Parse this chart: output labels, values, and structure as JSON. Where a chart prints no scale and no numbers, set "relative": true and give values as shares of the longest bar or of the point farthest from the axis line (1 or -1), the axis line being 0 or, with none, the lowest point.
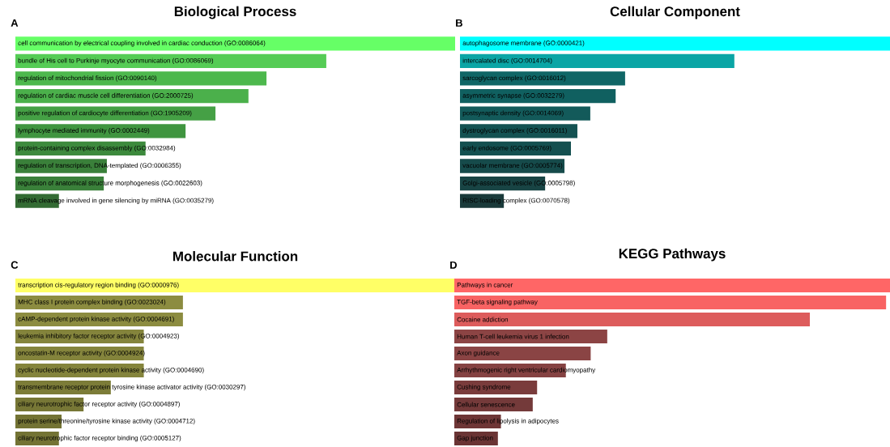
{
  "chart_data": [
    {
      "type": "bar",
      "orientation": "horizontal",
      "relative": true,
      "title": "Biological Process",
      "annotations": [
        "A"
      ],
      "categories": [
        "cell communication by electrical coupling involved in cardiac conduction (GO:0086064)",
        "bundle of His cell to Purkinje myocyte communication (GO:0086069)",
        "regulation of mitochondrial fission (GO:0090140)",
        "regulation of cardiac muscle cell differentiation (GO:2000725)",
        "positive regulation of cardiocyte differentiation (GO:1905209)",
        "lymphocyte mediated immunity (GO:0002449)",
        "protein-containing complex disassembly (GO:0032984)",
        "regulation of transcription, DNA-templated (GO:0006355)",
        "regulation of anatomical structure morphogenesis (GO:0022603)",
        "mRNA cleavage involved in gene silencing by miRNA (GO:0035279)"
      ],
      "values": [
        1,
        0.707,
        0.571,
        0.53,
        0.455,
        0.387,
        0.296,
        0.208,
        0.201,
        0.099
      ],
      "colors": [
        "#66ff66",
        "#55cc55",
        "#4db84d",
        "#4bb04b",
        "#45a045",
        "#409540",
        "#3d8a3d",
        "#3a803a",
        "#3a803a",
        "#336b33"
      ]
    },
    {
      "type": "bar",
      "orientation": "horizontal",
      "relative": true,
      "title": "Cellular Component",
      "annotations": [
        "B"
      ],
      "categories": [
        "autophagosome membrane (GO:0000421)",
        "intercalated disc (GO:0014704)",
        "sarcoglycan complex (GO:0016012)",
        "asymmetric synapse (GO:0032279)",
        "postsynaptic density (GO:0014069)",
        "dystroglycan complex (GO:0016011)",
        "early endosome (GO:0005769)",
        "vacuolar membrane (GO:0005774)",
        "Golgi-associated vesicle (GO:0005798)",
        "RISC-loading complex (GO:0070578)"
      ],
      "values": [
        1,
        0.638,
        0.384,
        0.362,
        0.303,
        0.273,
        0.258,
        0.243,
        0.198,
        0.102
      ],
      "colors": [
        "#00ffff",
        "#0aa5a5",
        "#106666",
        "#106060",
        "#135a5a",
        "#145252",
        "#145050",
        "#164b4b",
        "#184444",
        "#1a3a3a"
      ]
    },
    {
      "type": "bar",
      "orientation": "horizontal",
      "relative": true,
      "title": "Molecular Function",
      "annotations": [
        "C"
      ],
      "categories": [
        "transcription cis-regulatory region binding (GO:0000976)",
        "MHC class I protein complex binding (GO:0023024)",
        "cAMP-dependent protein kinase activity (GO:0004691)",
        "leukemia inhibitory factor receptor activity (GO:0004923)",
        "oncostatin-M receptor activity (GO:0004924)",
        "cyclic nucleotide-dependent protein kinase activity (GO:0004690)",
        "transmembrane receptor protein tyrosine kinase activator activity (GO:0030297)",
        "ciliary neurotrophic factor receptor activity (GO:0004897)",
        "protein serine/threonine/tyrosine kinase activity (GO:0004712)",
        "ciliary neurotrophic factor receptor binding (GO:0005127)"
      ],
      "values": [
        1,
        0.381,
        0.381,
        0.292,
        0.292,
        0.292,
        0.217,
        0.155,
        0.105,
        0.099
      ],
      "colors": [
        "#ffff66",
        "#8c8c40",
        "#8c8c40",
        "#84843c",
        "#84843c",
        "#84843c",
        "#7c7c38",
        "#777736",
        "#737334",
        "#737334"
      ]
    },
    {
      "type": "bar",
      "orientation": "horizontal",
      "relative": true,
      "title": "KEGG Pathways",
      "annotations": [
        "D"
      ],
      "categories": [
        "Pathways in cancer",
        "TGF-beta signaling pathway",
        "Cocaine addiction",
        "Human T-cell leukemia virus 1 infection",
        "Axon guidance",
        "Arrhythmogenic right ventricular cardiomyopathy",
        "Cushing syndrome",
        "Cellular senescence",
        "Regulation of lipolysis in adipocytes",
        "Gap junction"
      ],
      "values": [
        1,
        0.991,
        0.816,
        0.351,
        0.313,
        0.256,
        0.19,
        0.18,
        0.107,
        0.1
      ],
      "colors": [
        "#ff6666",
        "#f86363",
        "#dd5c5c",
        "#8c4444",
        "#8a4444",
        "#854242",
        "#7a3c3c",
        "#743a3a",
        "#6e3636",
        "#6a3434"
      ]
    }
  ]
}
